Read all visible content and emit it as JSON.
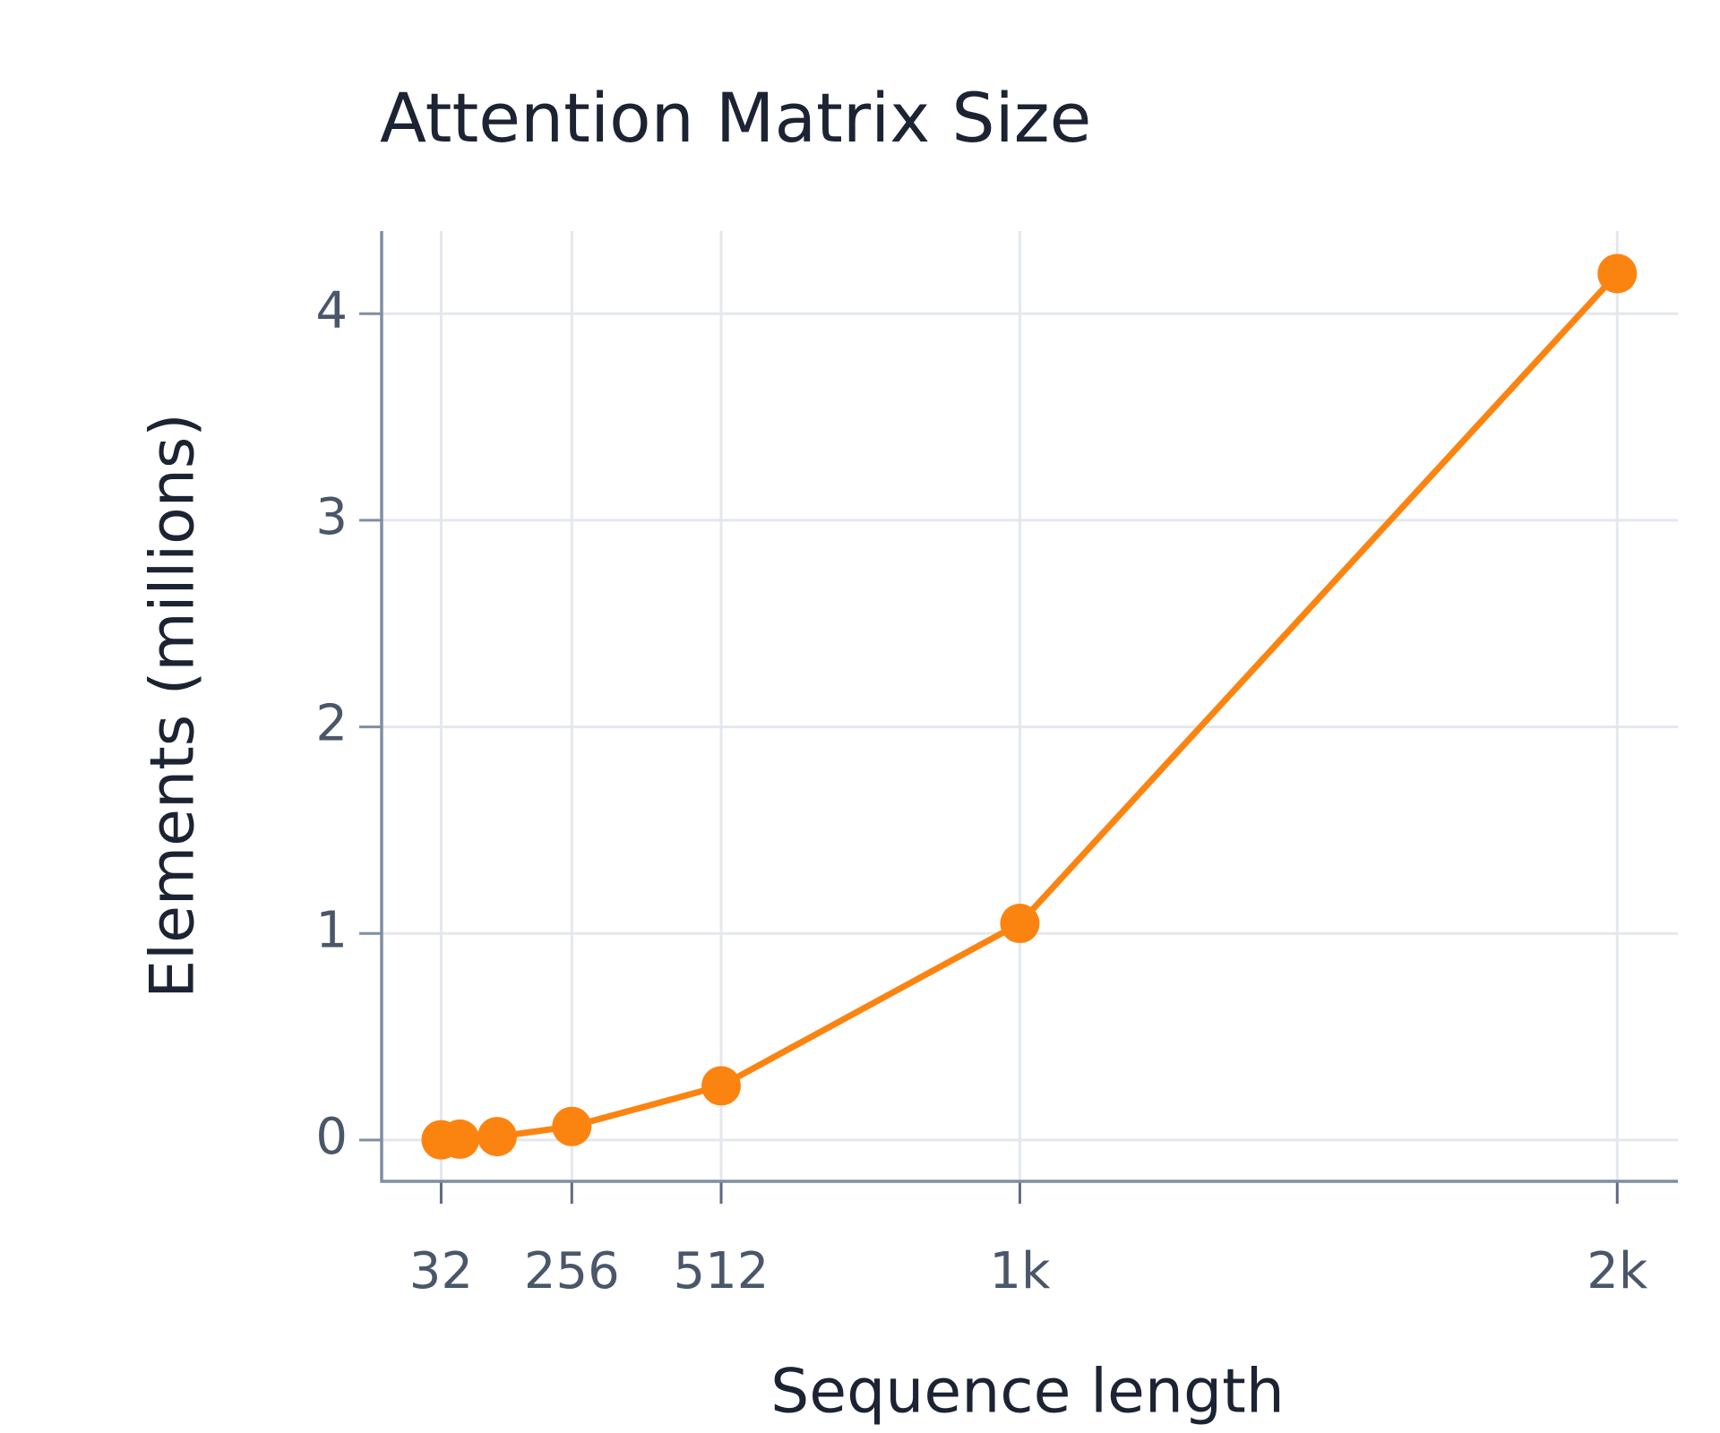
{
  "chart_data": {
    "type": "line",
    "title": "Attention Matrix Size",
    "x_label": "Sequence length",
    "y_label": "Elements (millions)",
    "x": [
      32,
      64,
      128,
      256,
      512,
      1024,
      2048
    ],
    "series": [
      {
        "name": "Elements",
        "color": "#fb8411",
        "values": [
          0.001024,
          0.004096,
          0.016384,
          0.065536,
          0.262144,
          1.048576,
          4.194304
        ]
      }
    ],
    "xlim": [
      -70,
      2152
    ],
    "xticks": [
      32,
      256,
      512,
      {
        "value": 1024,
        "label": "1k"
      },
      {
        "value": 2048,
        "label": "2k"
      }
    ],
    "ylim": [
      -0.2,
      4.4
    ],
    "yticks": [
      0,
      1,
      2,
      3,
      4
    ],
    "grid": true
  }
}
